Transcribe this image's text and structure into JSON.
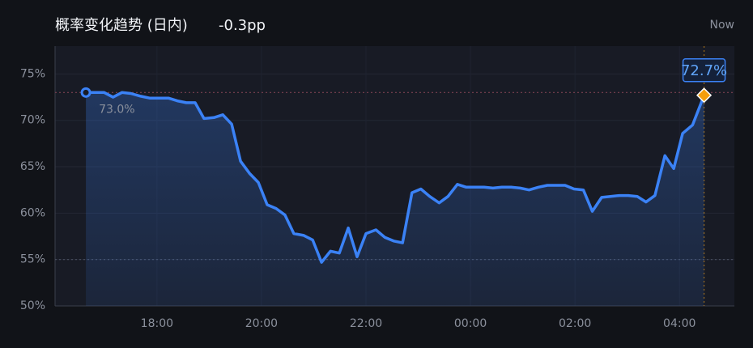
{
  "chart_data": {
    "type": "line",
    "title": "概率变化趋势 (日内)",
    "subtitle": "-0.3pp",
    "annotations": [
      "Now"
    ],
    "color": "#3b82f6",
    "end_marker_color": "#f59e0b",
    "x": [
      16.64,
      16.81,
      16.99,
      17.16,
      17.33,
      17.5,
      17.69,
      17.86,
      18.05,
      18.22,
      18.39,
      18.56,
      18.73,
      18.9,
      19.09,
      19.26,
      19.43,
      19.6,
      19.77,
      19.94,
      20.11,
      20.28,
      20.45,
      20.62,
      20.81,
      20.98,
      21.15,
      21.32,
      21.49,
      21.66,
      21.83,
      22.0,
      22.19,
      22.36,
      22.53,
      22.7,
      22.88,
      23.05,
      23.22,
      23.4,
      23.57,
      23.75,
      23.92,
      24.09,
      24.26,
      24.43,
      24.6,
      24.78,
      24.95,
      25.12,
      25.3,
      25.47,
      25.64,
      25.81,
      25.98,
      26.16,
      26.33,
      26.51,
      26.68,
      26.85,
      27.02,
      27.19,
      27.36,
      27.53,
      27.72,
      27.89,
      28.06,
      28.25,
      28.47
    ],
    "values": [
      73.0,
      73.0,
      73.0,
      72.5,
      73.0,
      72.9,
      72.6,
      72.4,
      72.4,
      72.4,
      72.1,
      71.9,
      71.9,
      70.2,
      70.3,
      70.6,
      69.6,
      65.6,
      64.3,
      63.3,
      60.9,
      60.5,
      59.8,
      57.8,
      57.6,
      57.1,
      54.7,
      55.9,
      55.7,
      58.4,
      55.3,
      57.8,
      58.2,
      57.4,
      57.0,
      56.8,
      62.2,
      62.6,
      61.8,
      61.1,
      61.8,
      63.1,
      62.8,
      62.8,
      62.8,
      62.7,
      62.8,
      62.8,
      62.7,
      62.5,
      62.8,
      63.0,
      63.0,
      63.0,
      62.6,
      62.5,
      60.2,
      61.7,
      61.8,
      61.9,
      61.9,
      61.8,
      61.2,
      61.9,
      66.2,
      64.8,
      68.6,
      69.5,
      72.7
    ],
    "value_labels": [
      "73.0%",
      null,
      null,
      null,
      null,
      null,
      null,
      null,
      null,
      null,
      null,
      null,
      null,
      null,
      null,
      null,
      null,
      null,
      null,
      null,
      null,
      null,
      null,
      null,
      null,
      null,
      null,
      null,
      null,
      null,
      null,
      null,
      null,
      null,
      null,
      null,
      null,
      null,
      null,
      null,
      null,
      null,
      null,
      null,
      null,
      null,
      null,
      null,
      null,
      null,
      null,
      null,
      null,
      null,
      null,
      null,
      null,
      null,
      null,
      null,
      null,
      null,
      null,
      null,
      null,
      null,
      null,
      null,
      "72.7%"
    ],
    "xlim": [
      16.05,
      29.05
    ],
    "xticks": [
      {
        "value": 18,
        "label": "18:00"
      },
      {
        "value": 20,
        "label": "20:00"
      },
      {
        "value": 22,
        "label": "22:00"
      },
      {
        "value": 24,
        "label": "00:00"
      },
      {
        "value": 26,
        "label": "02:00"
      },
      {
        "value": 28,
        "label": "04:00"
      }
    ],
    "ylim": [
      50,
      78
    ],
    "yticks": [
      {
        "value": 50,
        "label": "50%"
      },
      {
        "value": 55,
        "label": "55%"
      },
      {
        "value": 60,
        "label": "60%"
      },
      {
        "value": 65,
        "label": "65%"
      },
      {
        "value": 70,
        "label": "70%"
      },
      {
        "value": 75,
        "label": "75%"
      }
    ],
    "hlines": [
      {
        "value": 73.0,
        "color": "#7a4050"
      },
      {
        "value": 55,
        "color": "#4a5060"
      }
    ],
    "grid": true
  }
}
